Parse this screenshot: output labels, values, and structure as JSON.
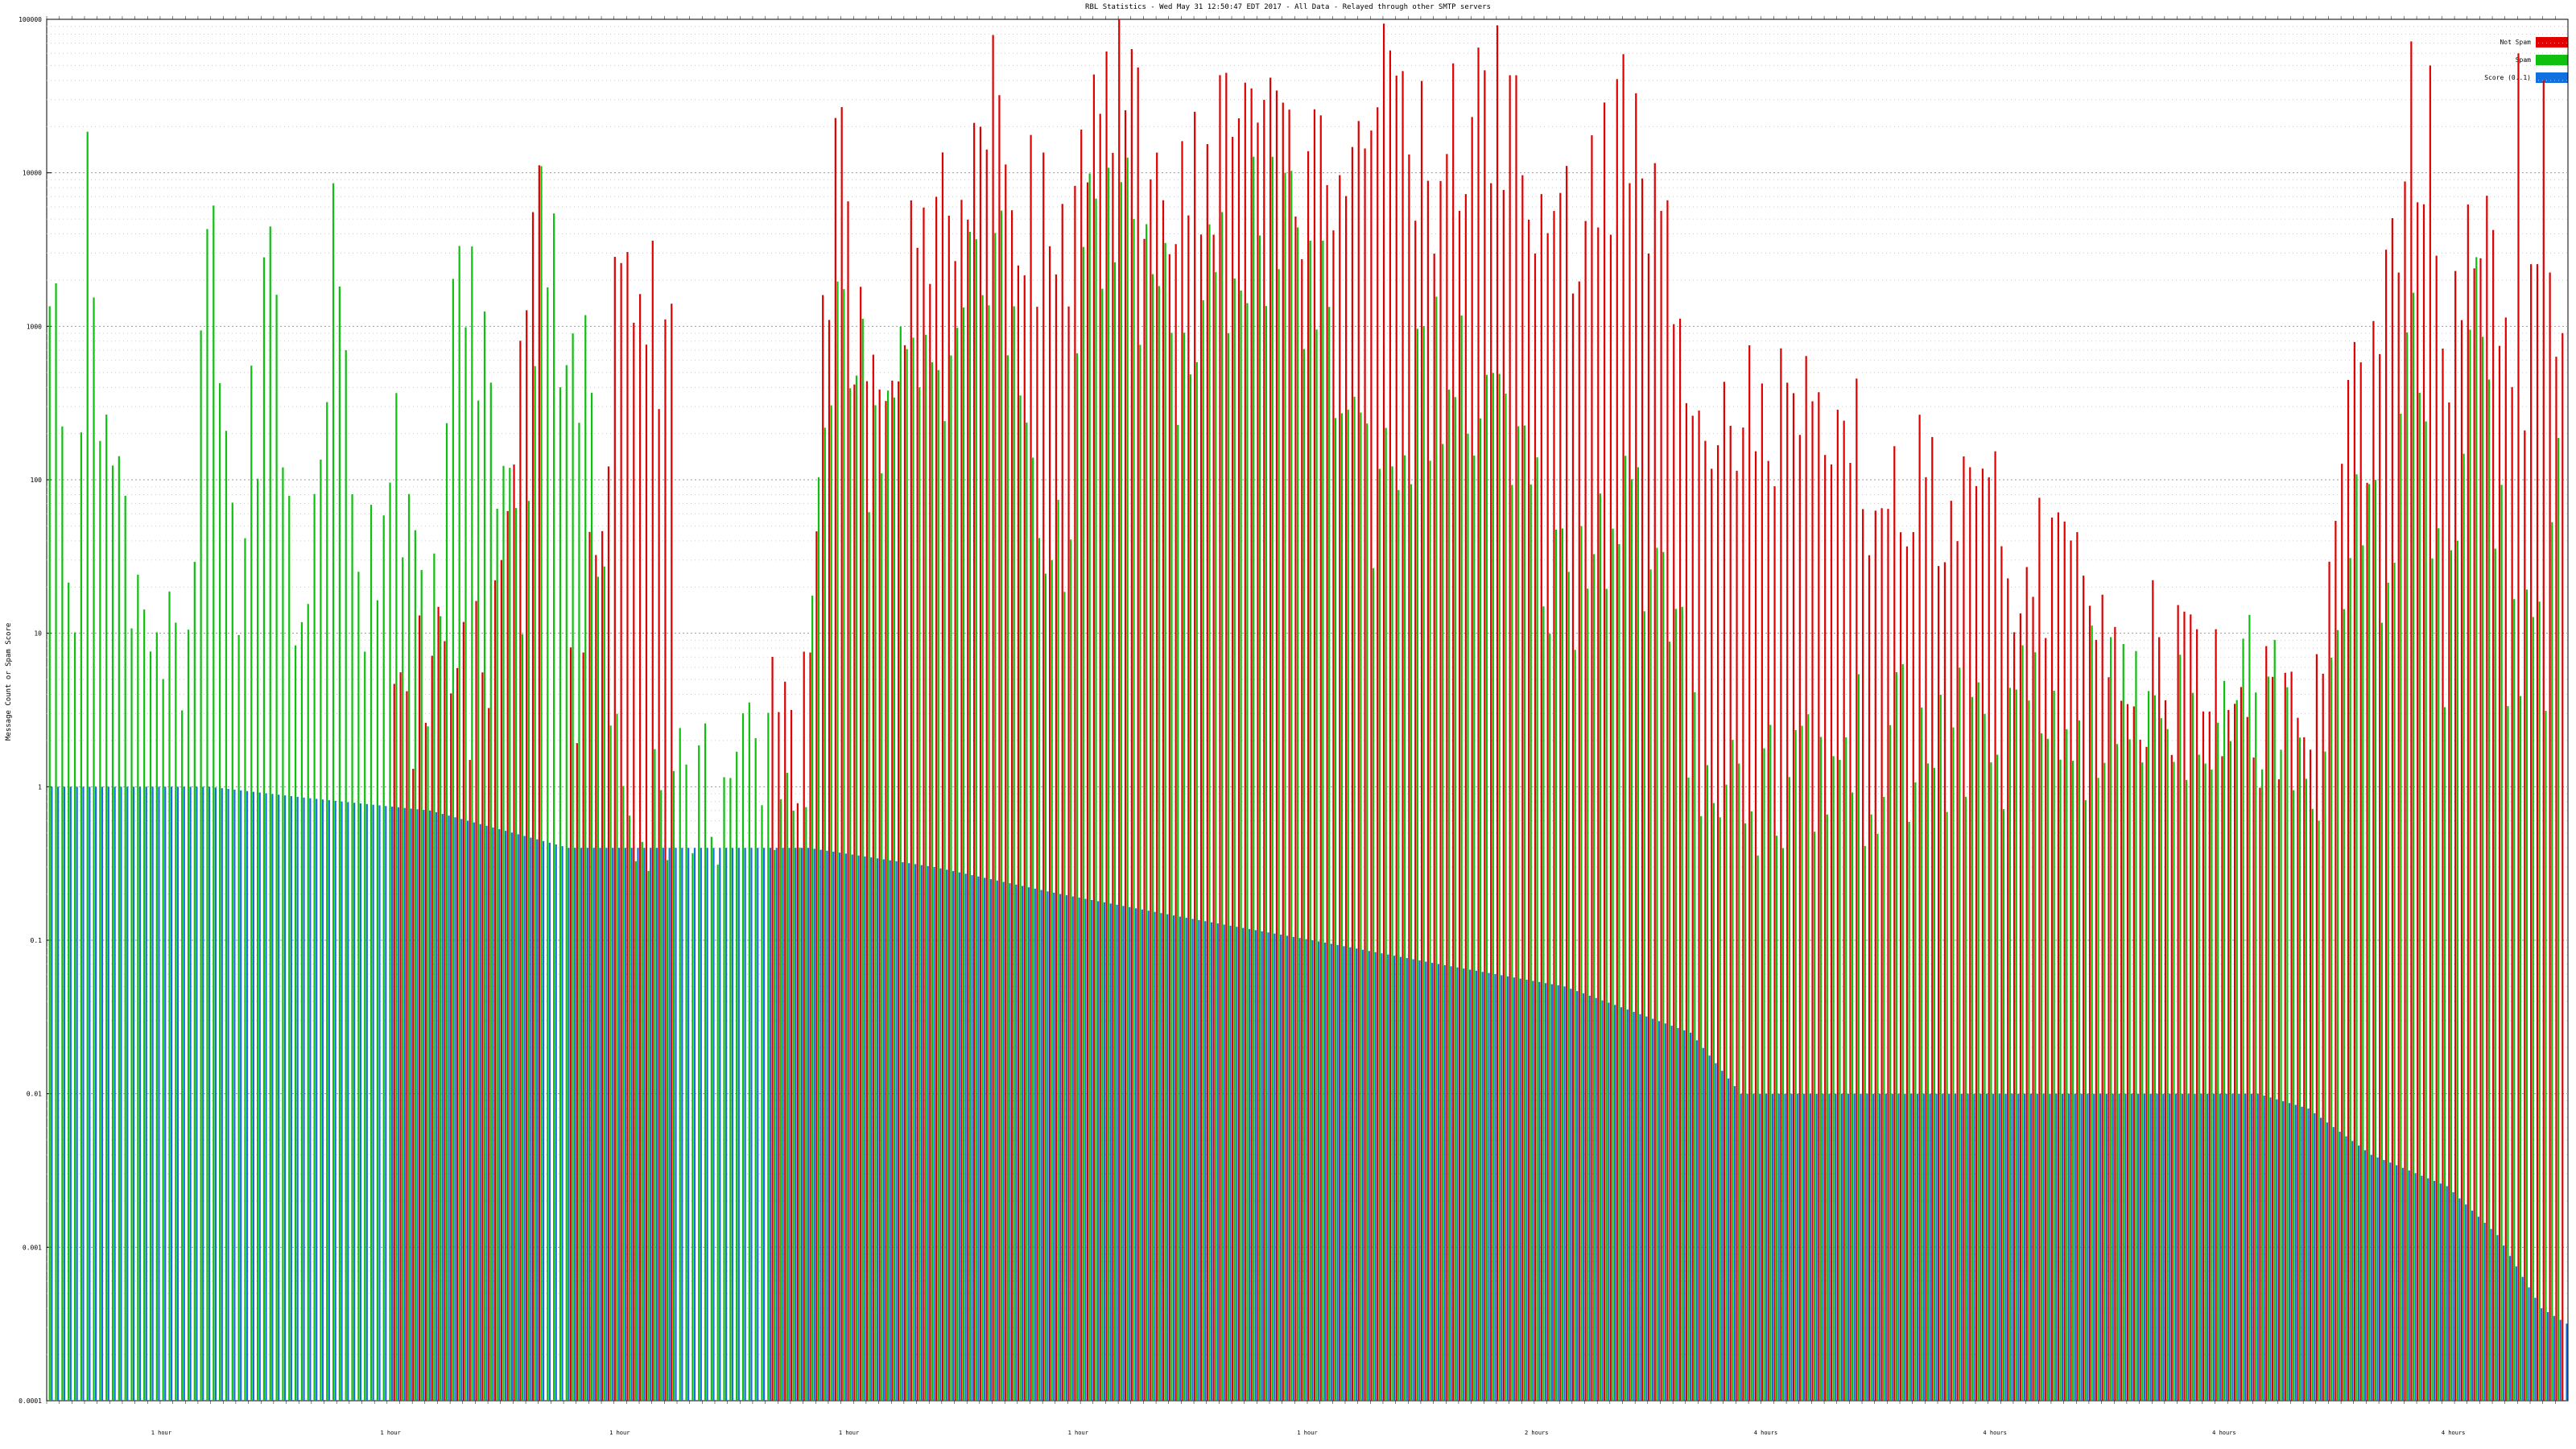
{
  "chart_data": {
    "type": "bar",
    "title": "RBL Statistics - Wed May 31 12:50:47 EDT 2017 - All Data - Relayed through other SMTP servers",
    "ylabel": "Message Count or Spam Score",
    "y_scale": "log",
    "ylim": [
      0.0001,
      100000
    ],
    "y_ticks": [
      "0.0001",
      "0.001",
      "0.01",
      "0.1",
      "1",
      "10",
      "100",
      "1000",
      "10000",
      "100000"
    ],
    "grid": true,
    "legend_position": "top-right",
    "x_tick_labels_shown": [
      "1 hour",
      "1 hour",
      "1 hour",
      "1 hour",
      "1 hour",
      "1 hour",
      "2 hours",
      "4 hours",
      "4 hours",
      "4 hours",
      "4 hours"
    ],
    "category_count": 400,
    "series": [
      {
        "name": "Not Spam",
        "color": "#e00000",
        "anchors": [
          [
            0,
            0
          ],
          [
            4,
            0
          ],
          [
            10,
            0
          ],
          [
            20,
            0
          ],
          [
            40,
            0
          ],
          [
            70,
            5
          ],
          [
            78,
            40000
          ],
          [
            80,
            0
          ],
          [
            85,
            5
          ],
          [
            90,
            1000
          ],
          [
            110,
            0
          ],
          [
            120,
            3
          ],
          [
            125,
            20000
          ],
          [
            130,
            200
          ],
          [
            140,
            5000
          ],
          [
            150,
            20000
          ],
          [
            160,
            3000
          ],
          [
            170,
            30000
          ],
          [
            180,
            5000
          ],
          [
            190,
            40000
          ],
          [
            200,
            8000
          ],
          [
            210,
            30000
          ],
          [
            220,
            10000
          ],
          [
            230,
            30000
          ],
          [
            240,
            3000
          ],
          [
            250,
            20000
          ],
          [
            260,
            1000
          ],
          [
            266,
            300
          ],
          [
            275,
            200
          ],
          [
            290,
            100
          ],
          [
            300,
            60
          ],
          [
            310,
            40
          ],
          [
            320,
            20
          ],
          [
            330,
            8
          ],
          [
            340,
            5
          ],
          [
            350,
            3
          ],
          [
            360,
            3
          ],
          [
            365,
            300
          ],
          [
            370,
            400
          ],
          [
            375,
            20000
          ],
          [
            380,
            500
          ],
          [
            385,
            5000
          ],
          [
            390,
            600
          ],
          [
            395,
            700
          ],
          [
            400,
            800
          ]
        ],
        "spikes": [
          [
            378,
            50000
          ],
          [
            392,
            60000
          ],
          [
            396,
            40000
          ]
        ]
      },
      {
        "name": "Spam",
        "color": "#10c010",
        "anchors": [
          [
            0,
            3000
          ],
          [
            2,
            200
          ],
          [
            4,
            30
          ],
          [
            6,
            5000
          ],
          [
            10,
            100
          ],
          [
            14,
            30
          ],
          [
            18,
            8
          ],
          [
            22,
            3
          ],
          [
            25,
            5000
          ],
          [
            30,
            20
          ],
          [
            35,
            3000
          ],
          [
            40,
            5
          ],
          [
            45,
            3000
          ],
          [
            50,
            20
          ],
          [
            55,
            300
          ],
          [
            60,
            3
          ],
          [
            65,
            3000
          ],
          [
            70,
            300
          ],
          [
            75,
            20
          ],
          [
            78,
            10000
          ],
          [
            80,
            2000
          ],
          [
            85,
            500
          ],
          [
            90,
            1
          ],
          [
            120,
            1
          ],
          [
            125,
            5000
          ],
          [
            130,
            200
          ],
          [
            140,
            600
          ],
          [
            150,
            3000
          ],
          [
            160,
            20
          ],
          [
            165,
            3000
          ],
          [
            170,
            5000
          ],
          [
            180,
            500
          ],
          [
            190,
            5000
          ],
          [
            200,
            2000
          ],
          [
            210,
            100
          ],
          [
            220,
            500
          ],
          [
            230,
            200
          ],
          [
            240,
            20
          ],
          [
            250,
            100
          ],
          [
            260,
            3
          ],
          [
            266,
            1
          ],
          [
            355,
            5
          ],
          [
            360,
            1
          ],
          [
            365,
            100
          ],
          [
            370,
            20
          ],
          [
            375,
            1000
          ],
          [
            380,
            5
          ],
          [
            385,
            3000
          ],
          [
            390,
            10
          ],
          [
            395,
            5
          ],
          [
            398,
            50
          ],
          [
            400,
            0
          ]
        ],
        "spikes": []
      },
      {
        "name": "Score (0..1)",
        "color": "#1070e0",
        "anchors": [
          [
            0,
            1
          ],
          [
            25,
            1
          ],
          [
            40,
            0.85
          ],
          [
            60,
            0.7
          ],
          [
            82,
            0.4
          ],
          [
            120,
            0.4
          ],
          [
            140,
            0.3
          ],
          [
            160,
            0.2
          ],
          [
            180,
            0.14
          ],
          [
            200,
            0.1
          ],
          [
            220,
            0.07
          ],
          [
            240,
            0.05
          ],
          [
            260,
            0.025
          ],
          [
            268,
            0.01
          ],
          [
            350,
            0.01
          ],
          [
            358,
            0.008
          ],
          [
            368,
            0.004
          ],
          [
            380,
            0.0025
          ],
          [
            388,
            0.0012
          ],
          [
            395,
            0.0004
          ],
          [
            400,
            0.0003
          ]
        ],
        "spikes": []
      }
    ]
  }
}
